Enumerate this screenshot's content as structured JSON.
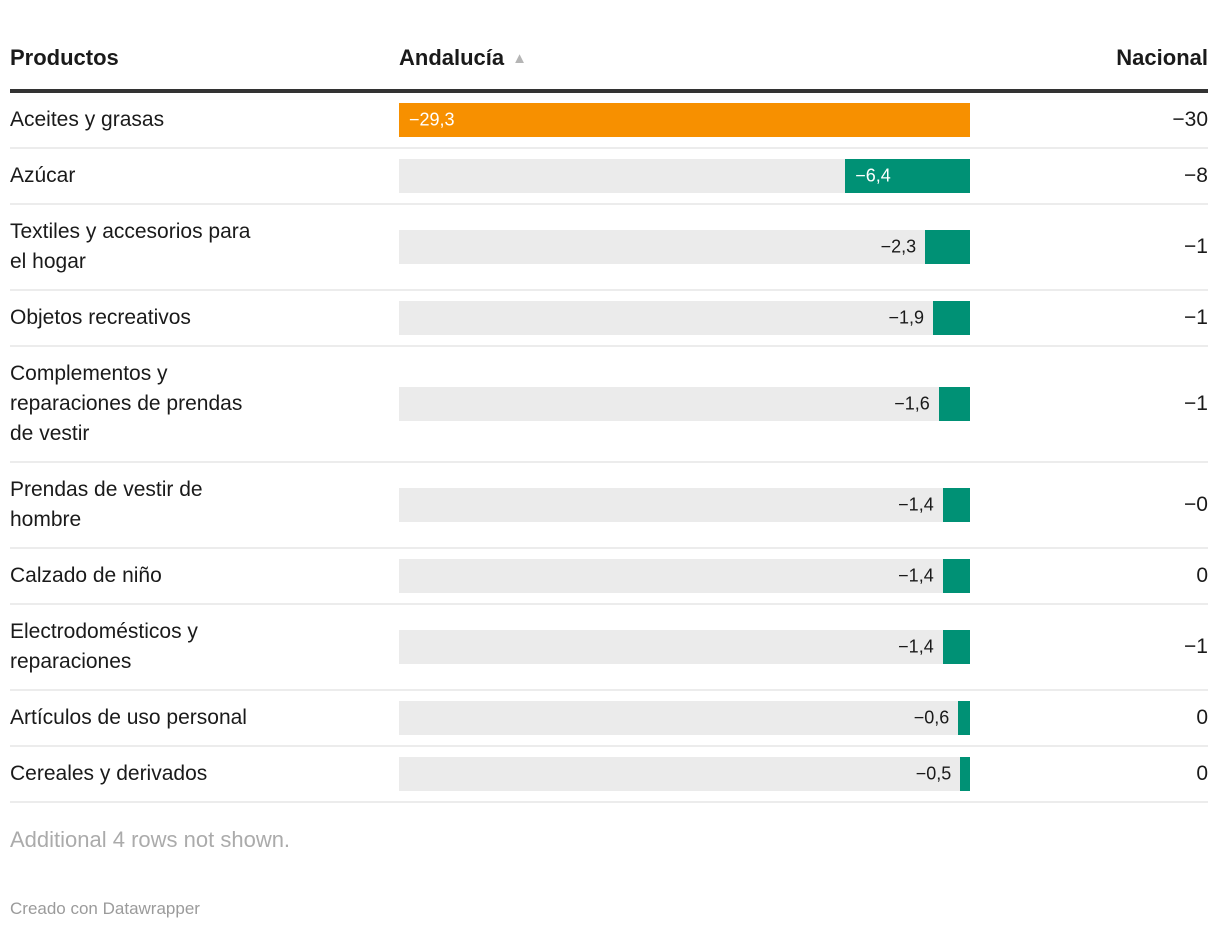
{
  "header": {
    "products_label": "Productos",
    "region_label": "Andalucía",
    "sort_icon": "▲",
    "national_label": "Nacional"
  },
  "table": {
    "scale_max": 29.3,
    "rows": [
      {
        "product": "Aceites y grasas",
        "value": -29.3,
        "value_label": "−29,3",
        "national": "−30",
        "color": "orange",
        "label_inside": true
      },
      {
        "product": "Azúcar",
        "value": -6.4,
        "value_label": "−6,4",
        "national": "−8",
        "color": "green",
        "label_inside": true
      },
      {
        "product": "Textiles y accesorios para\nel hogar",
        "value": -2.3,
        "value_label": "−2,3",
        "national": "−1",
        "color": "green",
        "label_inside": false
      },
      {
        "product": "Objetos recreativos",
        "value": -1.9,
        "value_label": "−1,9",
        "national": "−1",
        "color": "green",
        "label_inside": false
      },
      {
        "product": "Complementos y\nreparaciones de prendas\nde vestir",
        "value": -1.6,
        "value_label": "−1,6",
        "national": "−1",
        "color": "green",
        "label_inside": false
      },
      {
        "product": "Prendas de vestir de\nhombre",
        "value": -1.4,
        "value_label": "−1,4",
        "national": "−0",
        "color": "green",
        "label_inside": false
      },
      {
        "product": "Calzado de niño",
        "value": -1.4,
        "value_label": "−1,4",
        "national": "0",
        "color": "green",
        "label_inside": false
      },
      {
        "product": "Electrodomésticos y\nreparaciones",
        "value": -1.4,
        "value_label": "−1,4",
        "national": "−1",
        "color": "green",
        "label_inside": false
      },
      {
        "product": "Artículos de uso personal",
        "value": -0.6,
        "value_label": "−0,6",
        "national": "0",
        "color": "green",
        "label_inside": false
      },
      {
        "product": "Cereales y derivados",
        "value": -0.5,
        "value_label": "−0,5",
        "national": "0",
        "color": "green",
        "label_inside": false
      }
    ]
  },
  "note": "Additional 4 rows not shown.",
  "footer": {
    "credit": "Creado con Datawrapper"
  },
  "palette": {
    "orange": "#f79000",
    "green": "#009175",
    "track": "#ebebeb",
    "header_rule": "#333333",
    "separator": "#ececec"
  },
  "chart_data": {
    "type": "table",
    "title": "",
    "categories": [
      "Aceites y grasas",
      "Azúcar",
      "Textiles y accesorios para el hogar",
      "Objetos recreativos",
      "Complementos y reparaciones de prendas de vestir",
      "Prendas de vestir de hombre",
      "Calzado de niño",
      "Electrodomésticos y reparaciones",
      "Artículos de uso personal",
      "Cereales y derivados"
    ],
    "series": [
      {
        "name": "Andalucía",
        "display": "bar",
        "values": [
          -29.3,
          -6.4,
          -2.3,
          -1.9,
          -1.6,
          -1.4,
          -1.4,
          -1.4,
          -0.6,
          -0.5
        ]
      },
      {
        "name": "Nacional",
        "display": "number",
        "values": [
          -30,
          -8,
          -1,
          -1,
          -1,
          -0.0,
          0,
          -1,
          0,
          0
        ]
      }
    ],
    "bar_axis_range": [
      -29.3,
      0
    ],
    "highlight_row": "Aceites y grasas",
    "sort": {
      "column": "Andalucía",
      "direction": "ascending"
    },
    "note": "Additional 4 rows not shown."
  }
}
